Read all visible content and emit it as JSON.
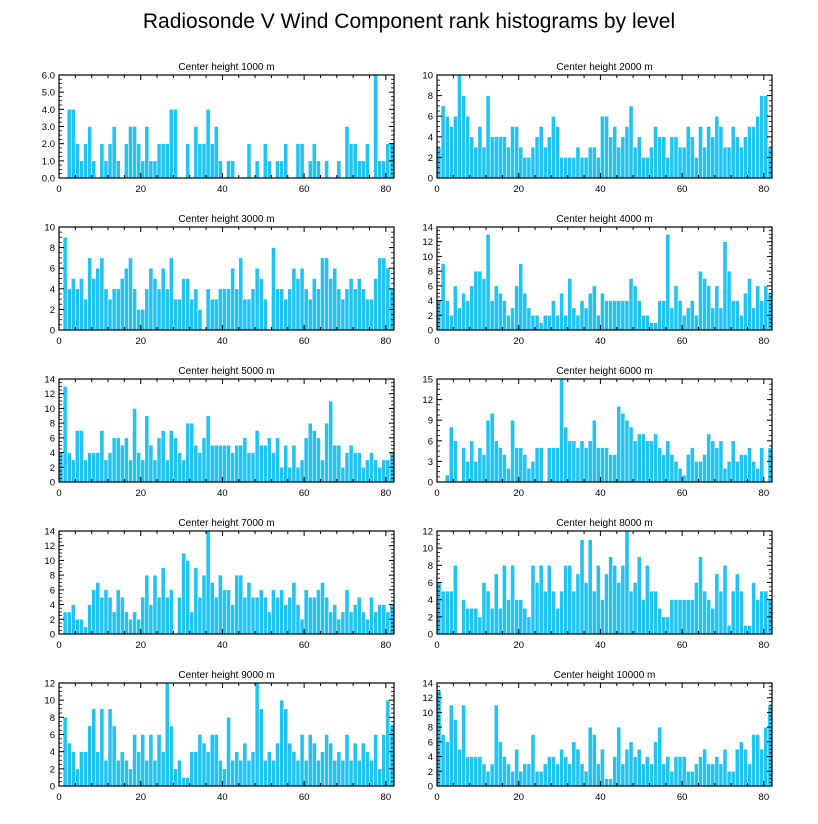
{
  "title": "Radiosonde V Wind Component rank histograms by level",
  "colors": {
    "bar": "#20c4f4",
    "bar_edge": "#ffffff",
    "axis": "#000000"
  },
  "chart_data": [
    {
      "type": "bar",
      "title": "Center height 1000 m",
      "xlim": [
        0,
        82
      ],
      "ylim": [
        0,
        6
      ],
      "xticks": [
        0,
        20,
        40,
        60,
        80
      ],
      "yticks": [
        "0.0",
        "1.0",
        "2.0",
        "3.0",
        "4.0",
        "5.0",
        "6.0"
      ],
      "values": [
        0,
        0,
        4,
        4,
        2,
        1,
        2,
        3,
        1,
        0,
        2,
        1,
        2,
        3,
        1,
        0,
        2,
        3,
        3,
        2,
        1,
        3,
        1,
        1,
        2,
        2,
        2,
        4,
        4,
        0,
        0,
        2,
        0,
        3,
        2,
        2,
        4,
        2,
        3,
        1,
        0,
        1,
        1,
        0,
        0,
        0,
        2,
        0,
        1,
        0,
        2,
        1,
        0,
        1,
        1,
        2,
        0,
        0,
        2,
        2,
        0,
        1,
        2,
        1,
        0,
        1,
        0,
        0,
        1,
        0,
        3,
        2,
        2,
        1,
        1,
        2,
        0,
        6,
        1,
        1,
        2,
        2
      ]
    },
    {
      "type": "bar",
      "title": "Center height 2000 m",
      "xlim": [
        0,
        82
      ],
      "ylim": [
        0,
        10
      ],
      "xticks": [
        0,
        20,
        40,
        60,
        80
      ],
      "yticks": [
        "0",
        "2",
        "4",
        "6",
        "8",
        "10"
      ],
      "values": [
        3,
        7,
        6,
        5,
        6,
        10,
        8,
        6,
        4,
        3,
        5,
        3,
        8,
        4,
        4,
        4,
        4,
        3,
        5,
        5,
        3,
        2,
        2,
        3,
        4,
        5,
        3,
        4,
        6,
        5,
        2,
        2,
        2,
        2,
        3,
        2,
        2,
        3,
        3,
        2,
        6,
        6,
        4,
        5,
        3,
        4,
        5,
        7,
        3,
        4,
        2,
        2,
        3,
        5,
        4,
        4,
        2,
        4,
        4,
        3,
        3,
        5,
        4,
        2,
        5,
        3,
        5,
        4,
        6,
        5,
        3,
        3,
        5,
        4,
        3,
        4,
        5,
        5,
        6,
        8,
        8,
        3
      ]
    },
    {
      "type": "bar",
      "title": "Center height 3000 m",
      "xlim": [
        0,
        82
      ],
      "ylim": [
        0,
        10
      ],
      "xticks": [
        0,
        20,
        40,
        60,
        80
      ],
      "yticks": [
        "0",
        "2",
        "4",
        "6",
        "8",
        "10"
      ],
      "values": [
        0,
        9,
        4,
        5,
        4,
        5,
        3,
        7,
        5,
        6,
        7,
        4,
        3,
        4,
        4,
        5,
        6,
        7,
        4,
        2,
        2,
        4,
        6,
        5,
        4,
        6,
        4,
        7,
        3,
        3,
        5,
        5,
        3,
        4,
        2,
        0,
        4,
        3,
        3,
        4,
        4,
        4,
        6,
        4,
        7,
        3,
        3,
        4,
        6,
        5,
        3,
        0,
        8,
        4,
        4,
        3,
        4,
        6,
        5,
        6,
        4,
        3,
        5,
        4,
        7,
        7,
        5,
        6,
        4,
        3,
        4,
        5,
        4,
        5,
        4,
        3,
        3,
        5,
        7,
        7,
        6,
        4
      ]
    },
    {
      "type": "bar",
      "title": "Center height 4000 m",
      "xlim": [
        0,
        82
      ],
      "ylim": [
        0,
        14
      ],
      "xticks": [
        0,
        20,
        40,
        60,
        80
      ],
      "yticks": [
        "0",
        "2",
        "4",
        "6",
        "8",
        "10",
        "12",
        "14"
      ],
      "values": [
        4,
        9,
        4,
        2,
        6,
        3,
        5,
        4,
        6,
        8,
        8,
        7,
        13,
        4,
        6,
        5,
        4,
        2,
        3,
        6,
        9,
        5,
        3,
        2,
        2,
        1,
        2,
        2,
        4,
        2,
        5,
        2,
        7,
        3,
        2,
        4,
        3,
        5,
        6,
        2,
        5,
        4,
        4,
        4,
        4,
        4,
        4,
        7,
        6,
        4,
        2,
        2,
        1,
        1,
        4,
        4,
        13,
        3,
        6,
        4,
        2,
        3,
        4,
        2,
        8,
        7,
        6,
        3,
        6,
        3,
        12,
        8,
        4,
        4,
        2,
        5,
        7,
        3,
        6,
        4,
        6,
        5
      ]
    },
    {
      "type": "bar",
      "title": "Center height 5000 m",
      "xlim": [
        0,
        82
      ],
      "ylim": [
        0,
        14
      ],
      "xticks": [
        0,
        20,
        40,
        60,
        80
      ],
      "yticks": [
        "0",
        "2",
        "4",
        "6",
        "8",
        "10",
        "12",
        "14"
      ],
      "values": [
        4,
        13,
        4,
        3,
        7,
        7,
        3,
        4,
        4,
        4,
        7,
        3,
        4,
        6,
        6,
        5,
        6,
        3,
        10,
        4,
        3,
        9,
        5,
        3,
        6,
        7,
        3,
        7,
        6,
        4,
        3,
        8,
        8,
        5,
        4,
        6,
        9,
        5,
        5,
        5,
        5,
        5,
        4,
        5,
        5,
        6,
        4,
        4,
        7,
        5,
        5,
        6,
        4,
        6,
        2,
        5,
        2,
        5,
        2,
        3,
        6,
        8,
        7,
        6,
        3,
        8,
        11,
        5,
        5,
        2,
        4,
        5,
        4,
        4,
        2,
        3,
        4,
        3,
        2,
        3,
        3,
        4
      ]
    },
    {
      "type": "bar",
      "title": "Center height 6000 m",
      "xlim": [
        0,
        82
      ],
      "ylim": [
        0,
        15
      ],
      "xticks": [
        0,
        20,
        40,
        60,
        80
      ],
      "yticks": [
        "0",
        "3",
        "6",
        "9",
        "12",
        "15"
      ],
      "values": [
        0,
        0,
        1,
        8,
        6,
        0,
        5,
        3,
        6,
        3,
        5,
        4,
        9,
        10,
        6,
        5,
        4,
        2,
        9,
        5,
        5,
        4,
        2,
        3,
        5,
        5,
        0,
        5,
        5,
        5,
        15,
        8,
        6,
        6,
        5,
        6,
        5,
        6,
        9,
        5,
        5,
        5,
        4,
        4,
        11,
        10,
        9,
        8,
        6,
        7,
        7,
        6,
        6,
        7,
        5,
        4,
        6,
        4,
        3,
        2,
        1,
        4,
        5,
        3,
        3,
        4,
        7,
        6,
        5,
        6,
        2,
        3,
        6,
        3,
        4,
        4,
        5,
        3,
        2,
        5,
        0,
        5
      ]
    },
    {
      "type": "bar",
      "title": "Center height 7000 m",
      "xlim": [
        0,
        82
      ],
      "ylim": [
        0,
        14
      ],
      "xticks": [
        0,
        20,
        40,
        60,
        80
      ],
      "yticks": [
        "0",
        "2",
        "4",
        "6",
        "8",
        "10",
        "12",
        "14"
      ],
      "values": [
        0,
        3,
        3,
        4,
        2,
        2,
        1,
        4,
        6,
        7,
        5,
        6,
        5,
        3,
        6,
        5,
        3,
        2,
        3,
        2,
        5,
        8,
        4,
        8,
        5,
        9,
        5,
        6,
        0,
        5,
        11,
        10,
        3,
        9,
        5,
        8,
        14,
        7,
        5,
        8,
        6,
        6,
        4,
        8,
        8,
        5,
        7,
        5,
        5,
        6,
        5,
        3,
        6,
        5,
        6,
        4,
        5,
        7,
        4,
        2,
        6,
        5,
        5,
        6,
        7,
        5,
        3,
        4,
        2,
        3,
        6,
        3,
        4,
        5,
        3,
        2,
        5,
        3,
        4,
        4,
        3,
        4
      ]
    },
    {
      "type": "bar",
      "title": "Center height 8000 m",
      "xlim": [
        0,
        82
      ],
      "ylim": [
        0,
        12
      ],
      "xticks": [
        0,
        20,
        40,
        60,
        80
      ],
      "yticks": [
        "0",
        "2",
        "4",
        "6",
        "8",
        "10",
        "12"
      ],
      "values": [
        6,
        5,
        5,
        5,
        8,
        0,
        4,
        3,
        3,
        3,
        2,
        6,
        5,
        3,
        7,
        3,
        8,
        4,
        8,
        4,
        4,
        3,
        2,
        8,
        6,
        8,
        5,
        8,
        5,
        3,
        5,
        8,
        8,
        5,
        7,
        11,
        6,
        11,
        5,
        8,
        4,
        7,
        9,
        8,
        6,
        8,
        12,
        5,
        6,
        9,
        4,
        8,
        5,
        5,
        3,
        2,
        2,
        4,
        4,
        4,
        4,
        4,
        4,
        6,
        9,
        5,
        4,
        3,
        7,
        5,
        8,
        1,
        5,
        7,
        5,
        1,
        1,
        6,
        4,
        5,
        5,
        4
      ]
    },
    {
      "type": "bar",
      "title": "Center height 9000 m",
      "xlim": [
        0,
        82
      ],
      "ylim": [
        0,
        12
      ],
      "xticks": [
        0,
        20,
        40,
        60,
        80
      ],
      "yticks": [
        "0",
        "2",
        "4",
        "6",
        "8",
        "10",
        "12"
      ],
      "values": [
        0,
        8,
        5,
        4,
        2,
        4,
        4,
        7,
        9,
        4,
        9,
        3,
        9,
        7,
        3,
        4,
        3,
        2,
        6,
        4,
        6,
        3,
        6,
        3,
        6,
        4,
        12,
        7,
        2,
        3,
        1,
        1,
        4,
        4,
        6,
        5,
        4,
        6,
        6,
        3,
        2,
        8,
        3,
        4,
        3,
        5,
        3,
        4,
        12,
        9,
        3,
        4,
        3,
        5,
        10,
        9,
        5,
        4,
        3,
        6,
        3,
        6,
        5,
        3,
        4,
        6,
        5,
        3,
        4,
        3,
        6,
        3,
        5,
        3,
        5,
        4,
        3,
        6,
        2,
        6,
        10,
        7
      ]
    },
    {
      "type": "bar",
      "title": "Center height 10000 m",
      "xlim": [
        0,
        82
      ],
      "ylim": [
        0,
        14
      ],
      "xticks": [
        0,
        20,
        40,
        60,
        80
      ],
      "yticks": [
        "0",
        "2",
        "4",
        "6",
        "8",
        "10",
        "12",
        "14"
      ],
      "values": [
        13,
        7,
        6,
        11,
        9,
        5,
        11,
        4,
        4,
        4,
        4,
        3,
        2,
        3,
        11,
        6,
        4,
        3,
        2,
        5,
        2,
        3,
        3,
        7,
        2,
        2,
        3,
        4,
        4,
        3,
        5,
        4,
        3,
        6,
        5,
        3,
        2,
        8,
        7,
        3,
        5,
        1,
        1,
        4,
        8,
        3,
        5,
        6,
        4,
        5,
        3,
        4,
        3,
        6,
        8,
        3,
        4,
        2,
        4,
        4,
        4,
        2,
        2,
        3,
        4,
        5,
        3,
        3,
        4,
        3,
        5,
        2,
        2,
        5,
        6,
        5,
        3,
        7,
        7,
        5,
        8,
        11
      ]
    }
  ]
}
